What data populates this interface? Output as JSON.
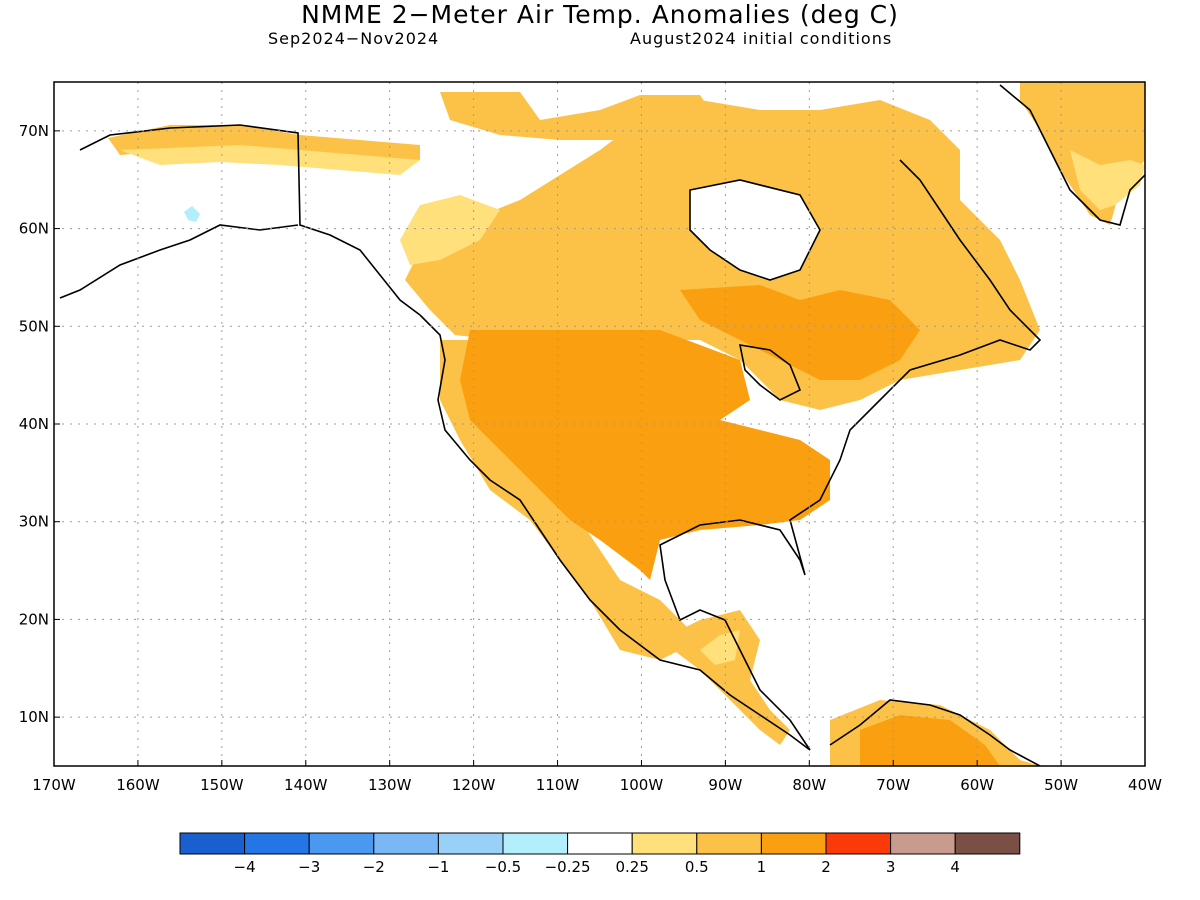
{
  "title": "NMME 2−Meter Air Temp. Anomalies (deg C)",
  "subtitle_left": "Sep2024−Nov2024",
  "subtitle_right": "August2024 initial conditions",
  "map": {
    "region": "North America",
    "lon_range": [
      -170,
      -40
    ],
    "lat_range": [
      5,
      75
    ],
    "lon_labels": [
      "170W",
      "160W",
      "150W",
      "140W",
      "130W",
      "120W",
      "110W",
      "100W",
      "90W",
      "80W",
      "70W",
      "60W",
      "50W",
      "40W"
    ],
    "lat_labels": [
      "10N",
      "20N",
      "30N",
      "40N",
      "50N",
      "60N",
      "70N"
    ],
    "grid": true
  },
  "legend": {
    "colors": [
      "#1a5fd0",
      "#2476e6",
      "#4a98ef",
      "#7ab8f5",
      "#98d0f8",
      "#b2eefb",
      "#ffffff",
      "#ffe07a",
      "#fcc247",
      "#fa9f10",
      "#fb3a0a",
      "#c99b8e",
      "#7a5046"
    ],
    "labels": [
      "−4",
      "−3",
      "−2",
      "−1",
      "−0.5",
      "−0.25",
      "0.25",
      "0.5",
      "1",
      "2",
      "3",
      "4"
    ]
  }
}
